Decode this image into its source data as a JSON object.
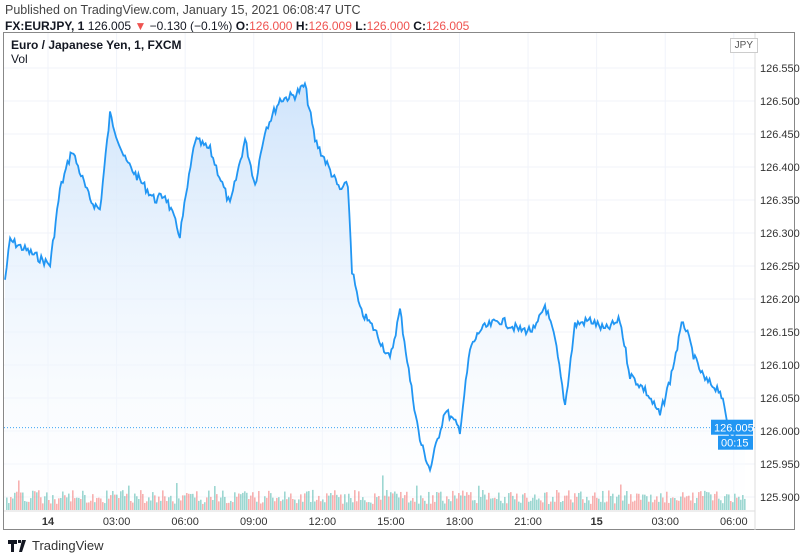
{
  "header": {
    "published": "Published on TradingView.com, January 15, 2021 06:08:47 UTC",
    "symbol": "FX:EURJPY, 1",
    "last": "126.005",
    "change": "−0.130 (−0.1%)",
    "o_label": "O:",
    "o": "126.000",
    "h_label": "H:",
    "h": "126.009",
    "l_label": "L:",
    "l": "126.000",
    "c_label": "C:",
    "c": "126.005",
    "down_arrow": "▼"
  },
  "legend": {
    "title": "Euro / Japanese Yen, 1, FXCM",
    "vol": "Vol"
  },
  "currency_badge": "JPY",
  "current_price": "126.005",
  "countdown": "00:15",
  "footer": {
    "logo_text": "TradingView"
  },
  "colors": {
    "line": "#2196f3",
    "up": "#26a69a",
    "down": "#ef5350",
    "fill": "#e3f0fd"
  },
  "chart_data": {
    "type": "line",
    "title": "Euro / Japanese Yen, 1, FXCM",
    "xlabel": "",
    "ylabel": "",
    "x_unit": "hours since Jan 14 00:00 UTC",
    "ylim": [
      125.88,
      126.596
    ],
    "yticks": [
      "126.550",
      "126.500",
      "126.450",
      "126.400",
      "126.350",
      "126.300",
      "126.250",
      "126.200",
      "126.150",
      "126.100",
      "126.050",
      "126.000",
      "125.950",
      "125.900"
    ],
    "ytick_values": [
      126.55,
      126.5,
      126.45,
      126.4,
      126.35,
      126.3,
      126.25,
      126.2,
      126.15,
      126.1,
      126.05,
      126.0,
      125.95,
      125.9
    ],
    "xticks": [
      {
        "label": "14",
        "h": 0
      },
      {
        "label": "03:00",
        "h": 3
      },
      {
        "label": "06:00",
        "h": 6
      },
      {
        "label": "09:00",
        "h": 9
      },
      {
        "label": "12:00",
        "h": 12
      },
      {
        "label": "15:00",
        "h": 15
      },
      {
        "label": "18:00",
        "h": 18
      },
      {
        "label": "21:00",
        "h": 21
      },
      {
        "label": "15",
        "h": 24
      },
      {
        "label": "03:00",
        "h": 27
      },
      {
        "label": "06:00",
        "h": 30
      }
    ],
    "xlim": [
      -1.9,
      31.0
    ],
    "series": [
      {
        "name": "EURJPY",
        "points": [
          [
            -1.88,
            126.229
          ],
          [
            -1.66,
            126.289
          ],
          [
            0.09,
            126.252
          ],
          [
            0.52,
            126.365
          ],
          [
            1.05,
            126.426
          ],
          [
            1.84,
            126.35
          ],
          [
            2.27,
            126.335
          ],
          [
            2.71,
            126.479
          ],
          [
            3.37,
            126.411
          ],
          [
            4.02,
            126.38
          ],
          [
            4.68,
            126.35
          ],
          [
            5.12,
            126.358
          ],
          [
            5.77,
            126.297
          ],
          [
            6.43,
            126.441
          ],
          [
            7.09,
            126.426
          ],
          [
            7.96,
            126.342
          ],
          [
            8.62,
            126.441
          ],
          [
            9.06,
            126.373
          ],
          [
            9.49,
            126.456
          ],
          [
            10.15,
            126.502
          ],
          [
            10.8,
            126.509
          ],
          [
            11.24,
            126.524
          ],
          [
            11.68,
            126.441
          ],
          [
            12.34,
            126.395
          ],
          [
            12.77,
            126.365
          ],
          [
            13.12,
            126.373
          ],
          [
            13.3,
            126.244
          ],
          [
            13.65,
            126.183
          ],
          [
            14.3,
            126.153
          ],
          [
            14.96,
            126.108
          ],
          [
            15.4,
            126.183
          ],
          [
            15.84,
            126.077
          ],
          [
            16.27,
            125.986
          ],
          [
            16.71,
            125.941
          ],
          [
            17.37,
            126.032
          ],
          [
            18.02,
            126.002
          ],
          [
            18.46,
            126.123
          ],
          [
            18.9,
            126.153
          ],
          [
            19.77,
            126.168
          ],
          [
            20.65,
            126.153
          ],
          [
            21.3,
            126.153
          ],
          [
            21.74,
            126.191
          ],
          [
            22.18,
            126.138
          ],
          [
            22.62,
            126.039
          ],
          [
            23.05,
            126.161
          ],
          [
            23.71,
            126.168
          ],
          [
            24.37,
            126.153
          ],
          [
            25.02,
            126.168
          ],
          [
            25.46,
            126.085
          ],
          [
            26.12,
            126.062
          ],
          [
            26.77,
            126.024
          ],
          [
            27.21,
            126.077
          ],
          [
            27.78,
            126.168
          ],
          [
            28.3,
            126.108
          ],
          [
            28.74,
            126.077
          ],
          [
            29.4,
            126.062
          ],
          [
            29.83,
            125.994
          ],
          [
            30.49,
            126.005
          ]
        ]
      }
    ],
    "grid": true,
    "legend": "top-left"
  }
}
